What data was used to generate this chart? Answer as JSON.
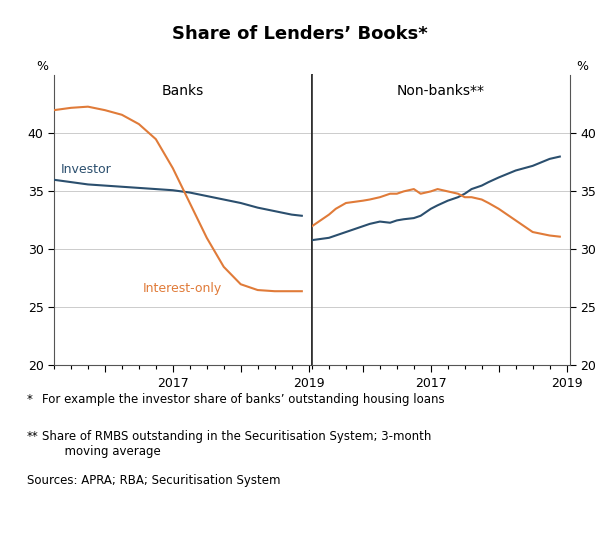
{
  "title": "Share of Lenders’ Books*",
  "left_panel_title": "Banks",
  "right_panel_title": "Non-banks**",
  "ylim": [
    20,
    45
  ],
  "yticks": [
    20,
    25,
    30,
    35,
    40
  ],
  "colors": {
    "investor": "#2b4f6e",
    "interest_only": "#e07b39"
  },
  "banks_investor": {
    "x": [
      2015.25,
      2015.5,
      2015.75,
      2016.0,
      2016.25,
      2016.5,
      2016.75,
      2017.0,
      2017.25,
      2017.5,
      2017.75,
      2018.0,
      2018.25,
      2018.5,
      2018.75,
      2018.9
    ],
    "y": [
      36.0,
      35.8,
      35.6,
      35.5,
      35.4,
      35.3,
      35.2,
      35.1,
      34.9,
      34.6,
      34.3,
      34.0,
      33.6,
      33.3,
      33.0,
      32.9
    ]
  },
  "banks_interest_only": {
    "x": [
      2015.25,
      2015.5,
      2015.75,
      2016.0,
      2016.25,
      2016.5,
      2016.75,
      2017.0,
      2017.25,
      2017.5,
      2017.75,
      2018.0,
      2018.25,
      2018.5,
      2018.75,
      2018.9
    ],
    "y": [
      42.0,
      42.2,
      42.3,
      42.0,
      41.6,
      40.8,
      39.5,
      37.0,
      34.0,
      31.0,
      28.5,
      27.0,
      26.5,
      26.4,
      26.4,
      26.4
    ]
  },
  "nonbanks_investor": {
    "x": [
      2015.25,
      2015.5,
      2015.6,
      2015.75,
      2016.0,
      2016.1,
      2016.25,
      2016.4,
      2016.5,
      2016.6,
      2016.75,
      2016.85,
      2017.0,
      2017.1,
      2017.25,
      2017.4,
      2017.5,
      2017.6,
      2017.75,
      2017.85,
      2018.0,
      2018.25,
      2018.5,
      2018.75,
      2018.9
    ],
    "y": [
      30.8,
      31.0,
      31.2,
      31.5,
      32.0,
      32.2,
      32.4,
      32.3,
      32.5,
      32.6,
      32.7,
      32.9,
      33.5,
      33.8,
      34.2,
      34.5,
      34.8,
      35.2,
      35.5,
      35.8,
      36.2,
      36.8,
      37.2,
      37.8,
      38.0
    ]
  },
  "nonbanks_interest_only": {
    "x": [
      2015.25,
      2015.5,
      2015.6,
      2015.75,
      2016.0,
      2016.1,
      2016.25,
      2016.4,
      2016.5,
      2016.6,
      2016.75,
      2016.85,
      2017.0,
      2017.1,
      2017.25,
      2017.4,
      2017.5,
      2017.6,
      2017.75,
      2017.85,
      2018.0,
      2018.25,
      2018.5,
      2018.75,
      2018.9
    ],
    "y": [
      32.0,
      33.0,
      33.5,
      34.0,
      34.2,
      34.3,
      34.5,
      34.8,
      34.8,
      35.0,
      35.2,
      34.8,
      35.0,
      35.2,
      35.0,
      34.8,
      34.5,
      34.5,
      34.3,
      34.0,
      33.5,
      32.5,
      31.5,
      31.2,
      31.1
    ]
  },
  "xlim": [
    2015.25,
    2019.05
  ],
  "xticks": [
    2016.0,
    2017.0,
    2018.0,
    2019.0
  ],
  "xtick_labels_banks": [
    "",
    "2017",
    "",
    "2019"
  ],
  "xtick_labels_nonbanks": [
    "",
    "2017",
    "",
    "2019"
  ],
  "footnote1_star": "*",
  "footnote1_text": "   For example the investor share of banks’ outstanding housing loans",
  "footnote2_star": "**",
  "footnote2_text": "  Share of RMBS outstanding in the Securitisation System; 3-month\n      moving average",
  "footnote3": "Sources: APRA; RBA; Securitisation System",
  "grid_color": "#cccccc",
  "spine_color": "#555555"
}
